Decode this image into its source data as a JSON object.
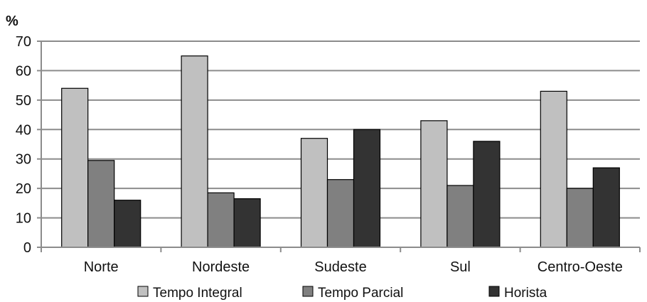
{
  "chart_data": {
    "type": "bar",
    "y_unit": "%",
    "categories": [
      "Norte",
      "Nordeste",
      "Sudeste",
      "Sul",
      "Centro-Oeste"
    ],
    "series": [
      {
        "name": "Tempo Integral",
        "color": "#c0c0c0",
        "values": [
          54,
          65,
          37,
          43,
          53
        ]
      },
      {
        "name": "Tempo Parcial",
        "color": "#808080",
        "values": [
          29.5,
          18.5,
          23,
          21,
          20
        ]
      },
      {
        "name": "Horista",
        "color": "#333333",
        "values": [
          16,
          16.5,
          40,
          36,
          27
        ]
      }
    ],
    "yticks": [
      "0",
      "10",
      "20",
      "30",
      "40",
      "50",
      "60",
      "70"
    ],
    "ylim": [
      0,
      70
    ],
    "grid": true,
    "legend_position": "bottom"
  }
}
